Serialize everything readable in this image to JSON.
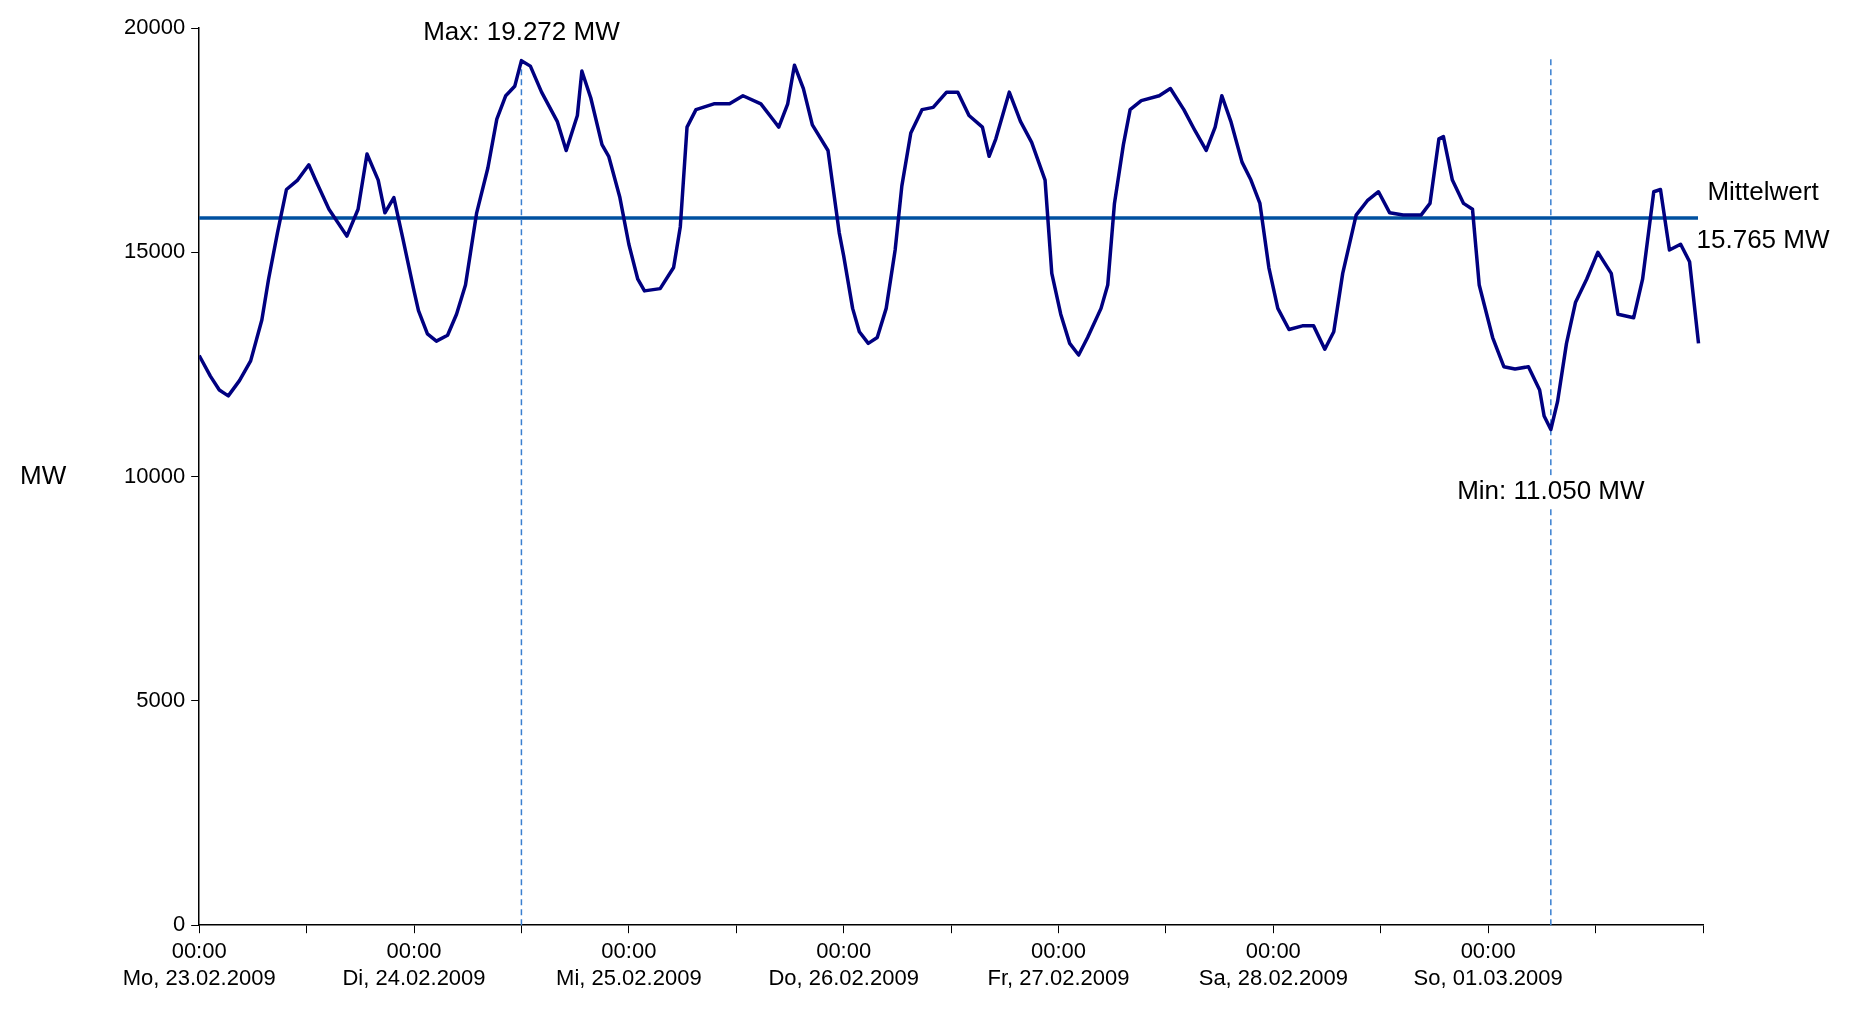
{
  "chart_data": {
    "type": "line",
    "ylabel": "MW",
    "xlim": [
      "2009-02-23T00:00",
      "2009-03-02T00:00"
    ],
    "ylim": [
      0,
      20000
    ],
    "yticks": [
      0,
      5000,
      10000,
      15000,
      20000
    ],
    "xticks": [
      {
        "value": "2009-02-23T00:00",
        "label": "00:00\nMo, 23.02.2009"
      },
      {
        "value": "2009-02-23T12:00",
        "label": null
      },
      {
        "value": "2009-02-24T00:00",
        "label": "00:00\nDi, 24.02.2009"
      },
      {
        "value": "2009-02-24T12:00",
        "label": null
      },
      {
        "value": "2009-02-25T00:00",
        "label": "00:00\nMi, 25.02.2009"
      },
      {
        "value": "2009-02-25T12:00",
        "label": null
      },
      {
        "value": "2009-02-26T00:00",
        "label": "00:00\nDo, 26.02.2009"
      },
      {
        "value": "2009-02-26T12:00",
        "label": null
      },
      {
        "value": "2009-02-27T00:00",
        "label": "00:00\nFr, 27.02.2009"
      },
      {
        "value": "2009-02-27T12:00",
        "label": null
      },
      {
        "value": "2009-02-28T00:00",
        "label": "00:00\nSa, 28.02.2009"
      },
      {
        "value": "2009-02-28T12:00",
        "label": null
      },
      {
        "value": "2009-03-01T00:00",
        "label": "00:00\nSo, 01.03.2009"
      },
      {
        "value": "2009-03-01T12:00",
        "label": null
      },
      {
        "value": "2009-03-02T00:00",
        "label": null
      }
    ],
    "grid": false,
    "legend": false,
    "marker": "none",
    "line_style": "solid",
    "series": [
      {
        "color": "#000080",
        "x": [
          "2009-02-23T00:00",
          "2009-02-23T01:15",
          "2009-02-23T02:15",
          "2009-02-23T03:15",
          "2009-02-23T04:30",
          "2009-02-23T05:45",
          "2009-02-23T07:00",
          "2009-02-23T07:45",
          "2009-02-23T08:45",
          "2009-02-23T09:45",
          "2009-02-23T11:00",
          "2009-02-23T12:15",
          "2009-02-23T13:00",
          "2009-02-23T14:30",
          "2009-02-23T16:30",
          "2009-02-23T17:45",
          "2009-02-23T18:45",
          "2009-02-23T20:00",
          "2009-02-23T20:45",
          "2009-02-23T21:45",
          "2009-02-23T22:45",
          "2009-02-24T00:00",
          "2009-02-24T00:30",
          "2009-02-24T01:30",
          "2009-02-24T02:30",
          "2009-02-24T03:45",
          "2009-02-24T04:45",
          "2009-02-24T05:45",
          "2009-02-24T07:00",
          "2009-02-24T08:15",
          "2009-02-24T09:15",
          "2009-02-24T10:15",
          "2009-02-24T11:15",
          "2009-02-24T12:00",
          "2009-02-24T13:00",
          "2009-02-24T14:15",
          "2009-02-24T16:00",
          "2009-02-24T17:00",
          "2009-02-24T18:15",
          "2009-02-24T18:45",
          "2009-02-24T19:45",
          "2009-02-24T21:00",
          "2009-02-24T21:45",
          "2009-02-24T23:00",
          "2009-02-25T00:00",
          "2009-02-25T01:00",
          "2009-02-25T01:45",
          "2009-02-25T03:30",
          "2009-02-25T05:00",
          "2009-02-25T05:45",
          "2009-02-25T06:30",
          "2009-02-25T07:30",
          "2009-02-25T09:30",
          "2009-02-25T11:15",
          "2009-02-25T12:45",
          "2009-02-25T14:45",
          "2009-02-25T16:15",
          "2009-02-25T16:45",
          "2009-02-25T17:45",
          "2009-02-25T18:30",
          "2009-02-25T19:30",
          "2009-02-25T20:30",
          "2009-02-25T22:15",
          "2009-02-25T23:30",
          "2009-02-26T00:00",
          "2009-02-26T01:00",
          "2009-02-26T01:45",
          "2009-02-26T02:45",
          "2009-02-26T03:45",
          "2009-02-26T04:45",
          "2009-02-26T05:45",
          "2009-02-26T06:30",
          "2009-02-26T07:30",
          "2009-02-26T08:45",
          "2009-02-26T10:00",
          "2009-02-26T11:30",
          "2009-02-26T12:45",
          "2009-02-26T14:00",
          "2009-02-26T15:30",
          "2009-02-26T16:15",
          "2009-02-26T17:00",
          "2009-02-26T18:30",
          "2009-02-26T19:45",
          "2009-02-26T21:00",
          "2009-02-26T22:30",
          "2009-02-26T23:15",
          "2009-02-27T00:15",
          "2009-02-27T01:15",
          "2009-02-27T02:15",
          "2009-02-27T03:15",
          "2009-02-27T04:45",
          "2009-02-27T05:30",
          "2009-02-27T06:15",
          "2009-02-27T07:15",
          "2009-02-27T08:00",
          "2009-02-27T09:15",
          "2009-02-27T11:15",
          "2009-02-27T12:30",
          "2009-02-27T14:00",
          "2009-02-27T15:15",
          "2009-02-27T16:30",
          "2009-02-27T17:30",
          "2009-02-27T18:15",
          "2009-02-27T19:15",
          "2009-02-27T20:30",
          "2009-02-27T21:30",
          "2009-02-27T22:30",
          "2009-02-27T23:30",
          "2009-02-28T00:30",
          "2009-02-28T01:45",
          "2009-02-28T03:15",
          "2009-02-28T04:30",
          "2009-02-28T05:45",
          "2009-02-28T06:45",
          "2009-02-28T07:45",
          "2009-02-28T09:15",
          "2009-02-28T10:30",
          "2009-02-28T11:45",
          "2009-02-28T13:00",
          "2009-02-28T14:30",
          "2009-02-28T16:30",
          "2009-02-28T17:30",
          "2009-02-28T18:30",
          "2009-02-28T19:00",
          "2009-02-28T20:00",
          "2009-02-28T21:15",
          "2009-02-28T22:15",
          "2009-02-28T23:00",
          "2009-03-01T00:30",
          "2009-03-01T01:45",
          "2009-03-01T03:00",
          "2009-03-01T04:30",
          "2009-03-01T05:45",
          "2009-03-01T06:15",
          "2009-03-01T07:00",
          "2009-03-01T07:45",
          "2009-03-01T08:45",
          "2009-03-01T09:45",
          "2009-03-01T11:00",
          "2009-03-01T12:15",
          "2009-03-01T13:45",
          "2009-03-01T14:30",
          "2009-03-01T16:15",
          "2009-03-01T17:15",
          "2009-03-01T18:30",
          "2009-03-01T19:15",
          "2009-03-01T20:15",
          "2009-03-01T21:30",
          "2009-03-01T22:30",
          "2009-03-01T23:30"
        ],
        "values": [
          12700,
          12240,
          11930,
          11800,
          12140,
          12580,
          13490,
          14400,
          15440,
          16400,
          16610,
          16950,
          16610,
          15960,
          15360,
          15960,
          17190,
          16610,
          15880,
          16220,
          15310,
          14140,
          13700,
          13180,
          13020,
          13150,
          13620,
          14270,
          15880,
          16880,
          17970,
          18490,
          18700,
          19272,
          19150,
          18570,
          17920,
          17270,
          18050,
          19040,
          18440,
          17400,
          17140,
          16220,
          15180,
          14400,
          14140,
          14190,
          14660,
          15570,
          17790,
          18180,
          18310,
          18310,
          18490,
          18310,
          17920,
          17790,
          18310,
          19170,
          18650,
          17840,
          17270,
          15440,
          14920,
          13750,
          13230,
          12970,
          13100,
          13750,
          15050,
          16480,
          17660,
          18180,
          18230,
          18570,
          18570,
          18050,
          17790,
          17140,
          17530,
          18570,
          17920,
          17450,
          16610,
          14530,
          13620,
          12970,
          12710,
          13100,
          13750,
          14270,
          16090,
          17400,
          18180,
          18380,
          18490,
          18650,
          18180,
          17710,
          17270,
          17790,
          18490,
          17920,
          17010,
          16610,
          16090,
          14660,
          13750,
          13280,
          13360,
          13360,
          12840,
          13230,
          14530,
          15830,
          16150,
          16350,
          15880,
          15830,
          15830,
          16090,
          17530,
          17580,
          16610,
          16090,
          15960,
          14270,
          13100,
          12450,
          12400,
          12450,
          11930,
          11350,
          11050,
          11670,
          12970,
          13880,
          14400,
          15000,
          14530,
          13620,
          13540,
          14400,
          16350,
          16400,
          15050,
          15180,
          14790,
          12970
        ]
      }
    ],
    "ref_lines": [
      {
        "axis": "y",
        "value": 15765,
        "label": "Mittelwert\n15.765 MW",
        "color": "#0050a0",
        "line_style": "solid"
      },
      {
        "axis": "x",
        "value": "2009-02-24T12:00",
        "color": "#3a7fd0",
        "line_style": "dashed"
      },
      {
        "axis": "x",
        "value": "2009-03-01T07:00",
        "color": "#3a7fd0",
        "line_style": "dashed"
      }
    ],
    "annotations": [
      {
        "text": "Max: 19.272 MW",
        "x": "2009-02-24T12:00",
        "y": 19272
      },
      {
        "text": "Min: 11.050 MW",
        "x": "2009-03-01T07:00",
        "y": 11050
      }
    ]
  }
}
